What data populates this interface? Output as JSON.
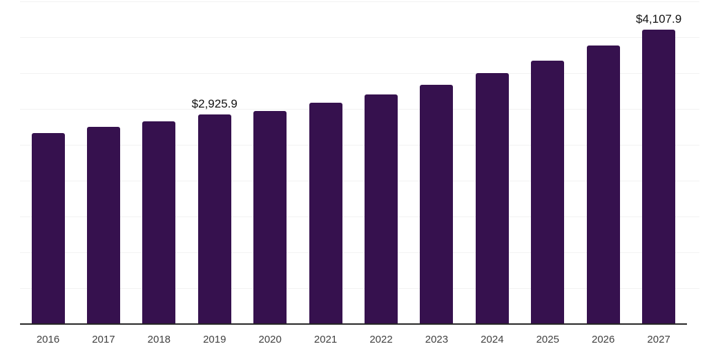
{
  "chart_data": {
    "type": "bar",
    "title": "",
    "xlabel": "",
    "ylabel": "",
    "categories": [
      "2016",
      "2017",
      "2018",
      "2019",
      "2020",
      "2021",
      "2022",
      "2023",
      "2024",
      "2025",
      "2026",
      "2027"
    ],
    "values": [
      2670,
      2750,
      2830,
      2925.9,
      2975,
      3085,
      3205,
      3340,
      3505,
      3675,
      3890,
      4107.9
    ],
    "data_labels": [
      {
        "category": "2019",
        "text": "$2,925.9"
      },
      {
        "category": "2027",
        "text": "$4,107.9"
      }
    ],
    "ylim": [
      0,
      4500
    ],
    "grid": true,
    "grid_step": 500,
    "legend_position": "none",
    "colors": {
      "bar": "#36114e",
      "gridline": "#f2f2f2",
      "axis": "#262626",
      "tick_label": "#404040",
      "data_label": "#111111",
      "background": "#ffffff"
    }
  }
}
